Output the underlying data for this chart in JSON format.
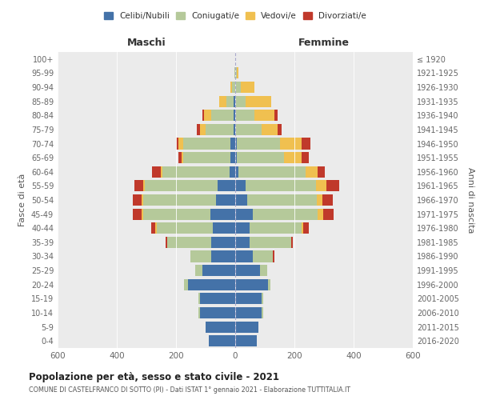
{
  "age_groups": [
    "100+",
    "95-99",
    "90-94",
    "85-89",
    "80-84",
    "75-79",
    "70-74",
    "65-69",
    "60-64",
    "55-59",
    "50-54",
    "45-49",
    "40-44",
    "35-39",
    "30-34",
    "25-29",
    "20-24",
    "15-19",
    "10-14",
    "5-9",
    "0-4"
  ],
  "birth_years": [
    "≤ 1920",
    "1921-1925",
    "1926-1930",
    "1931-1935",
    "1936-1940",
    "1941-1945",
    "1946-1950",
    "1951-1955",
    "1956-1960",
    "1961-1965",
    "1966-1970",
    "1971-1975",
    "1976-1980",
    "1981-1985",
    "1986-1990",
    "1991-1995",
    "1996-2000",
    "2001-2005",
    "2006-2010",
    "2011-2015",
    "2016-2020"
  ],
  "male": {
    "celibi": [
      0,
      0,
      0,
      5,
      5,
      5,
      15,
      15,
      20,
      60,
      65,
      85,
      75,
      80,
      80,
      110,
      160,
      120,
      120,
      100,
      90
    ],
    "coniugati": [
      0,
      3,
      10,
      25,
      75,
      95,
      160,
      160,
      225,
      245,
      245,
      225,
      190,
      150,
      70,
      25,
      12,
      4,
      4,
      0,
      0
    ],
    "vedovi": [
      0,
      0,
      6,
      25,
      25,
      18,
      18,
      6,
      6,
      6,
      6,
      6,
      6,
      0,
      0,
      0,
      0,
      0,
      0,
      0,
      0
    ],
    "divorziati": [
      0,
      0,
      0,
      0,
      6,
      12,
      6,
      12,
      30,
      30,
      30,
      30,
      12,
      6,
      0,
      0,
      0,
      0,
      0,
      0,
      0
    ]
  },
  "female": {
    "nubili": [
      0,
      0,
      0,
      0,
      0,
      0,
      6,
      6,
      12,
      35,
      40,
      60,
      48,
      48,
      60,
      85,
      110,
      90,
      90,
      78,
      72
    ],
    "coniugate": [
      0,
      6,
      18,
      36,
      66,
      90,
      145,
      158,
      225,
      237,
      237,
      218,
      176,
      140,
      66,
      24,
      10,
      4,
      4,
      0,
      0
    ],
    "vedove": [
      0,
      6,
      48,
      85,
      66,
      54,
      72,
      60,
      42,
      36,
      18,
      18,
      6,
      0,
      0,
      0,
      0,
      0,
      0,
      0,
      0
    ],
    "divorziate": [
      0,
      0,
      0,
      0,
      12,
      12,
      30,
      24,
      24,
      42,
      36,
      36,
      18,
      6,
      6,
      0,
      0,
      0,
      0,
      0,
      0
    ]
  },
  "colors": {
    "celibi": "#4472a8",
    "coniugati": "#b5c99a",
    "vedovi": "#f0c050",
    "divorziati": "#c0392b"
  },
  "title": "Popolazione per età, sesso e stato civile - 2021",
  "subtitle": "COMUNE DI CASTELFRANCO DI SOTTO (PI) - Dati ISTAT 1° gennaio 2021 - Elaborazione TUTTITALIA.IT",
  "xlim": 600,
  "legend_labels": [
    "Celibi/Nubili",
    "Coniugati/e",
    "Vedovi/e",
    "Divorziati/e"
  ],
  "xlabel_left": "Maschi",
  "xlabel_right": "Femmine",
  "ylabel_left": "Fasce di età",
  "ylabel_right": "Anni di nascita",
  "bg_color": "#ffffff",
  "plot_bg": "#ebebeb"
}
